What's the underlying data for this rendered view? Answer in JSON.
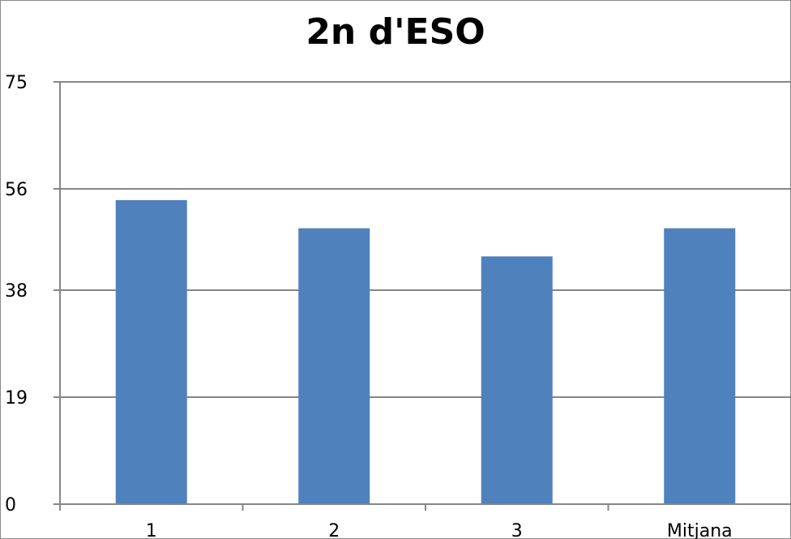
{
  "chart_data": {
    "type": "bar",
    "title": "2n d'ESO",
    "categories": [
      "1",
      "2",
      "3",
      "Mitjana"
    ],
    "values": [
      54,
      49,
      44,
      49
    ],
    "ylim": [
      0,
      75
    ],
    "yticks": [
      "0",
      "19",
      "38",
      "56",
      "75"
    ],
    "ytick_values": [
      0,
      19,
      38,
      56,
      75
    ],
    "xlabel": "",
    "ylabel": "",
    "grid": true,
    "bar_color": "#4f81bd",
    "gridline_color": "#868686"
  }
}
